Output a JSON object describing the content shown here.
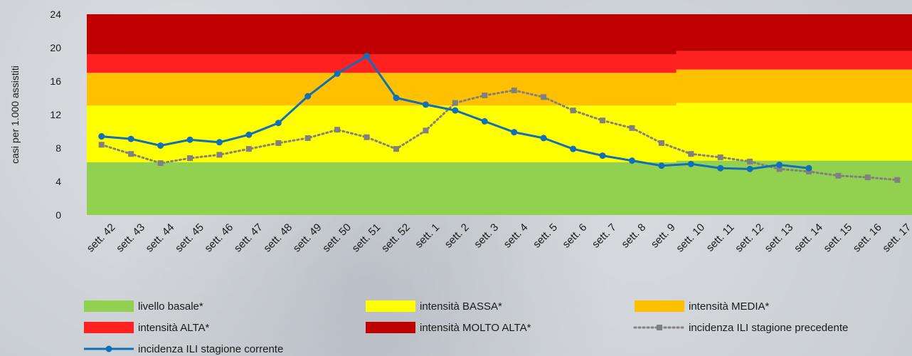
{
  "chart_data": {
    "type": "line",
    "ylabel": "casi per 1.000 assistiti",
    "ylim": [
      0,
      24
    ],
    "yticks": [
      0,
      4,
      8,
      12,
      16,
      20,
      24
    ],
    "categories": [
      "sett. 42",
      "sett. 43",
      "sett. 44",
      "sett. 45",
      "sett. 46",
      "sett. 47",
      "sett. 48",
      "sett. 49",
      "sett. 50",
      "sett. 51",
      "sett. 52",
      "sett. 1",
      "sett. 2",
      "sett. 3",
      "sett. 4",
      "sett. 5",
      "sett. 6",
      "sett. 7",
      "sett. 8",
      "sett. 9",
      "sett. 10",
      "sett. 11",
      "sett. 12",
      "sett. 13",
      "sett. 14",
      "sett. 15",
      "sett. 16",
      "sett. 17"
    ],
    "bands": [
      {
        "name": "livello basale*",
        "color": "#92d050",
        "upper": [
          6.3,
          6.3,
          6.3,
          6.3,
          6.3,
          6.3,
          6.3,
          6.3,
          6.3,
          6.3,
          6.3,
          6.3,
          6.3,
          6.3,
          6.3,
          6.3,
          6.3,
          6.3,
          6.3,
          6.3,
          6.5,
          6.5,
          6.5,
          6.5,
          6.5,
          6.5,
          6.5,
          6.5
        ]
      },
      {
        "name": "intensità BASSA*",
        "color": "#ffff00",
        "upper": [
          13.1,
          13.1,
          13.1,
          13.1,
          13.1,
          13.1,
          13.1,
          13.1,
          13.1,
          13.1,
          13.1,
          13.1,
          13.1,
          13.1,
          13.1,
          13.1,
          13.1,
          13.1,
          13.1,
          13.1,
          13.4,
          13.4,
          13.4,
          13.4,
          13.4,
          13.4,
          13.4,
          13.4
        ]
      },
      {
        "name": "intensità MEDIA*",
        "color": "#ffc000",
        "upper": [
          17.0,
          17.0,
          17.0,
          17.0,
          17.0,
          17.0,
          17.0,
          17.0,
          17.0,
          17.0,
          17.0,
          17.0,
          17.0,
          17.0,
          17.0,
          17.0,
          17.0,
          17.0,
          17.0,
          17.0,
          17.4,
          17.4,
          17.4,
          17.4,
          17.4,
          17.4,
          17.4,
          17.4
        ]
      },
      {
        "name": "intensità ALTA*",
        "color": "#ff2020",
        "upper": [
          19.2,
          19.2,
          19.2,
          19.2,
          19.2,
          19.2,
          19.2,
          19.2,
          19.2,
          19.2,
          19.2,
          19.2,
          19.2,
          19.2,
          19.2,
          19.2,
          19.2,
          19.2,
          19.2,
          19.2,
          19.6,
          19.6,
          19.6,
          19.6,
          19.6,
          19.6,
          19.6,
          19.6
        ]
      },
      {
        "name": "intensità MOLTO ALTA*",
        "color": "#c00000",
        "upper": [
          24,
          24,
          24,
          24,
          24,
          24,
          24,
          24,
          24,
          24,
          24,
          24,
          24,
          24,
          24,
          24,
          24,
          24,
          24,
          24,
          24,
          24,
          24,
          24,
          24,
          24,
          24,
          24
        ]
      }
    ],
    "series": [
      {
        "name": "incidenza ILI stagione precedente",
        "color": "#808080",
        "style": "dotted",
        "marker": "square",
        "values": [
          8.4,
          7.3,
          6.2,
          6.8,
          7.2,
          7.9,
          8.6,
          9.2,
          10.2,
          9.3,
          7.9,
          10.1,
          13.4,
          14.3,
          14.9,
          14.1,
          12.5,
          11.3,
          10.4,
          8.6,
          7.3,
          6.9,
          6.4,
          5.5,
          5.2,
          4.7,
          4.5,
          4.2
        ]
      },
      {
        "name": "incidenza ILI stagione corrente",
        "color": "#0f6fb8",
        "style": "solid",
        "marker": "circle",
        "values": [
          9.4,
          9.1,
          8.3,
          9.0,
          8.7,
          9.6,
          11.0,
          14.2,
          16.9,
          19.0,
          14.0,
          13.2,
          12.5,
          11.2,
          9.9,
          9.2,
          7.9,
          7.1,
          6.5,
          5.9,
          6.1,
          5.6,
          5.5,
          6.0,
          5.6,
          null,
          null,
          null
        ]
      }
    ],
    "legend": [
      {
        "label": "livello basale*",
        "kind": "swatch",
        "color": "#92d050"
      },
      {
        "label": "intensità BASSA*",
        "kind": "swatch",
        "color": "#ffff00"
      },
      {
        "label": "intensità MEDIA*",
        "kind": "swatch",
        "color": "#ffc000"
      },
      {
        "label": "intensità ALTA*",
        "kind": "swatch",
        "color": "#ff2020"
      },
      {
        "label": "intensità MOLTO ALTA*",
        "kind": "swatch",
        "color": "#c00000"
      },
      {
        "label": "incidenza ILI stagione precedente",
        "kind": "dotted-square",
        "color": "#808080"
      },
      {
        "label": "incidenza ILI stagione corrente",
        "kind": "solid-circle",
        "color": "#0f6fb8"
      }
    ],
    "legend_position": "bottom"
  }
}
